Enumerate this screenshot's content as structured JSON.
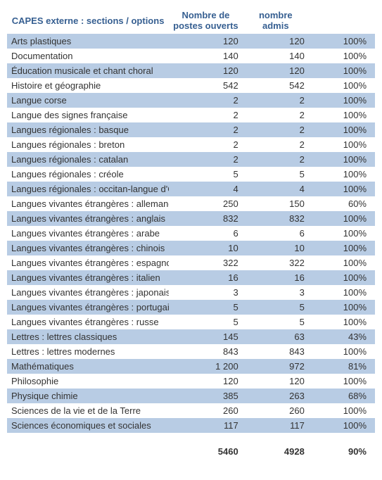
{
  "headers": {
    "section": "CAPES externe : sections / options",
    "postes": "Nombre de postes ouverts",
    "admis": "nombre admis",
    "pct": ""
  },
  "col_widths": {
    "name": "44%",
    "postes": "20%",
    "admis": "18%",
    "pct": "18%"
  },
  "colors": {
    "header_text": "#365f91",
    "band_odd": "#b8cce4",
    "band_even": "#ffffff"
  },
  "rows": [
    {
      "name": "Arts plastiques",
      "postes": "120",
      "admis": "120",
      "pct": "100%"
    },
    {
      "name": "Documentation",
      "postes": "140",
      "admis": "140",
      "pct": "100%"
    },
    {
      "name": "Éducation musicale et chant choral",
      "postes": "120",
      "admis": "120",
      "pct": "100%"
    },
    {
      "name": "Histoire et géographie",
      "postes": "542",
      "admis": "542",
      "pct": "100%"
    },
    {
      "name": "Langue corse",
      "postes": "2",
      "admis": "2",
      "pct": "100%"
    },
    {
      "name": "Langue des signes française",
      "postes": "2",
      "admis": "2",
      "pct": "100%"
    },
    {
      "name": "Langues régionales : basque",
      "postes": "2",
      "admis": "2",
      "pct": "100%"
    },
    {
      "name": "Langues régionales : breton",
      "postes": "2",
      "admis": "2",
      "pct": "100%"
    },
    {
      "name": "Langues régionales : catalan",
      "postes": "2",
      "admis": "2",
      "pct": "100%"
    },
    {
      "name": "Langues régionales : créole",
      "postes": "5",
      "admis": "5",
      "pct": "100%"
    },
    {
      "name": "Langues régionales : occitan-langue d'Oc",
      "postes": "4",
      "admis": "4",
      "pct": "100%"
    },
    {
      "name": "Langues vivantes étrangères : allemand",
      "postes": "250",
      "admis": "150",
      "pct": "60%"
    },
    {
      "name": "Langues vivantes étrangères : anglais",
      "postes": "832",
      "admis": "832",
      "pct": "100%"
    },
    {
      "name": "Langues vivantes étrangères : arabe",
      "postes": "6",
      "admis": "6",
      "pct": "100%"
    },
    {
      "name": "Langues vivantes étrangères : chinois",
      "postes": "10",
      "admis": "10",
      "pct": "100%"
    },
    {
      "name": "Langues vivantes étrangères : espagnol",
      "postes": "322",
      "admis": "322",
      "pct": "100%"
    },
    {
      "name": "Langues vivantes étrangères : italien",
      "postes": "16",
      "admis": "16",
      "pct": "100%"
    },
    {
      "name": "Langues vivantes étrangères : japonais",
      "postes": "3",
      "admis": "3",
      "pct": "100%"
    },
    {
      "name": "Langues vivantes étrangères : portugais",
      "postes": "5",
      "admis": "5",
      "pct": "100%"
    },
    {
      "name": "Langues vivantes étrangères : russe",
      "postes": "5",
      "admis": "5",
      "pct": "100%"
    },
    {
      "name": "Lettres : lettres classiques",
      "postes": "145",
      "admis": "63",
      "pct": "43%"
    },
    {
      "name": "Lettres : lettres modernes",
      "postes": "843",
      "admis": "843",
      "pct": "100%"
    },
    {
      "name": "Mathématiques",
      "postes": "1 200",
      "admis": "972",
      "pct": "81%"
    },
    {
      "name": "Philosophie",
      "postes": "120",
      "admis": "120",
      "pct": "100%"
    },
    {
      "name": "Physique chimie",
      "postes": "385",
      "admis": "263",
      "pct": "68%"
    },
    {
      "name": "Sciences de la vie et de la Terre",
      "postes": "260",
      "admis": "260",
      "pct": "100%"
    },
    {
      "name": "Sciences économiques et sociales",
      "postes": "117",
      "admis": "117",
      "pct": "100%"
    }
  ],
  "totals": {
    "name": "",
    "postes": "5460",
    "admis": "4928",
    "pct": "90%"
  }
}
